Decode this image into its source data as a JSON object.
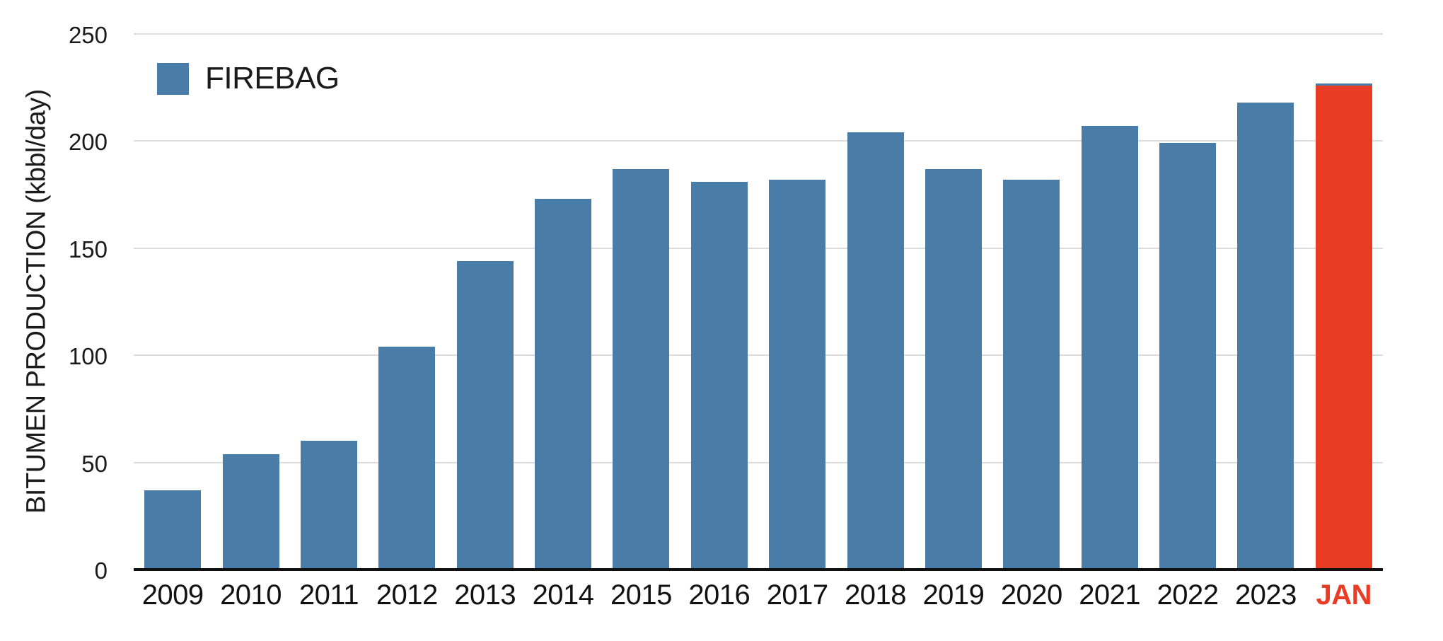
{
  "chart_data": {
    "type": "bar",
    "title": "",
    "xlabel": "",
    "ylabel": "BITUMEN PRODUCTION (kbbl/day)",
    "categories": [
      "2009",
      "2010",
      "2011",
      "2012",
      "2013",
      "2014",
      "2015",
      "2016",
      "2017",
      "2018",
      "2019",
      "2020",
      "2021",
      "2022",
      "2023",
      "JAN"
    ],
    "values": [
      37,
      54,
      60,
      104,
      144,
      173,
      187,
      181,
      182,
      204,
      187,
      182,
      207,
      199,
      218,
      227
    ],
    "series_name": "FIREBAG",
    "ylim": [
      0,
      250
    ],
    "yticks": [
      0,
      50,
      100,
      150,
      200,
      250
    ],
    "grid": "horizontal",
    "legend_position": "top-left",
    "bar_color": "#4A7CA8",
    "highlight_index": 15,
    "highlight_color": "#E83C25",
    "highlight_top_cap_color": "#4A7CA8",
    "highlight_label_color": "#E83C25"
  },
  "legend": {
    "label": "FIREBAG",
    "swatch_color": "#4A7CA8"
  },
  "colors": {
    "bar_blue": "#4A7CA8",
    "bar_red": "#E83C25",
    "gridline": "#DCDCDC",
    "axis_line": "#111111",
    "text": "#1A1A1A",
    "background": "#FFFFFF"
  }
}
